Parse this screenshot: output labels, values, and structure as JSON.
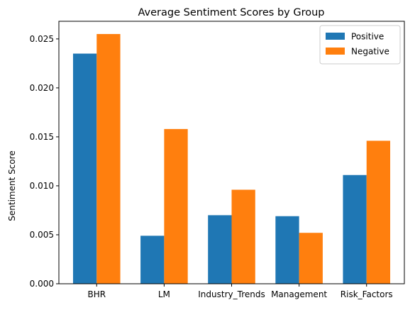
{
  "chart_data": {
    "type": "bar",
    "title": "Average Sentiment Scores by Group",
    "xlabel": "",
    "ylabel": "Sentiment Score",
    "categories": [
      "BHR",
      "LM",
      "Industry_Trends",
      "Management",
      "Risk_Factors"
    ],
    "series": [
      {
        "name": "Positive",
        "values": [
          0.0235,
          0.0049,
          0.007,
          0.0069,
          0.0111
        ]
      },
      {
        "name": "Negative",
        "values": [
          0.0255,
          0.0158,
          0.0096,
          0.0052,
          0.0146
        ]
      }
    ],
    "ylim": [
      0,
      0.0268
    ],
    "yticks": [
      "0.000",
      "0.005",
      "0.010",
      "0.015",
      "0.020",
      "0.025"
    ],
    "ytick_values": [
      0,
      0.005,
      0.01,
      0.015,
      0.02,
      0.025
    ],
    "grid": false,
    "legend_position": "top-right",
    "colors": {
      "Positive": "#1f77b4",
      "Negative": "#ff7f0e"
    }
  }
}
